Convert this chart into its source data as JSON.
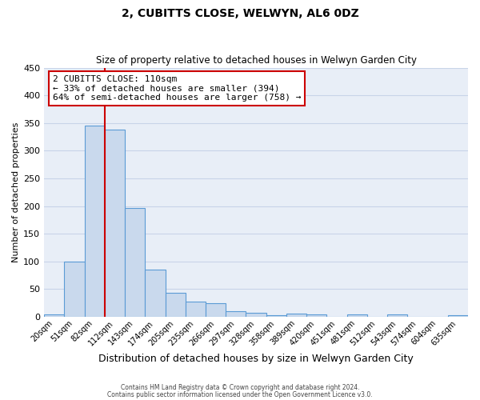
{
  "title": "2, CUBITTS CLOSE, WELWYN, AL6 0DZ",
  "subtitle": "Size of property relative to detached houses in Welwyn Garden City",
  "xlabel": "Distribution of detached houses by size in Welwyn Garden City",
  "ylabel": "Number of detached properties",
  "bin_labels": [
    "20sqm",
    "51sqm",
    "82sqm",
    "112sqm",
    "143sqm",
    "174sqm",
    "205sqm",
    "235sqm",
    "266sqm",
    "297sqm",
    "328sqm",
    "358sqm",
    "389sqm",
    "420sqm",
    "451sqm",
    "481sqm",
    "512sqm",
    "543sqm",
    "574sqm",
    "604sqm",
    "635sqm"
  ],
  "bar_values": [
    5,
    100,
    345,
    338,
    197,
    85,
    43,
    28,
    25,
    10,
    7,
    3,
    6,
    4,
    0,
    4,
    0,
    4,
    0,
    0,
    3
  ],
  "bar_color": "#c9d9ed",
  "bar_edge_color": "#5b9bd5",
  "vline_x": 2.5,
  "vline_color": "#cc0000",
  "ylim": [
    0,
    450
  ],
  "yticks": [
    0,
    50,
    100,
    150,
    200,
    250,
    300,
    350,
    400,
    450
  ],
  "annotation_title": "2 CUBITTS CLOSE: 110sqm",
  "annotation_line1": "← 33% of detached houses are smaller (394)",
  "annotation_line2": "64% of semi-detached houses are larger (758) →",
  "annotation_box_color": "#ffffff",
  "annotation_box_edge": "#cc0000",
  "footer_line1": "Contains HM Land Registry data © Crown copyright and database right 2024.",
  "footer_line2": "Contains public sector information licensed under the Open Government Licence v3.0.",
  "bg_color": "#ffffff",
  "plot_bg_color": "#e8eef7",
  "grid_color": "#c8d4e8",
  "title_fontsize": 10,
  "subtitle_fontsize": 8.5,
  "xlabel_fontsize": 9,
  "ylabel_fontsize": 8
}
